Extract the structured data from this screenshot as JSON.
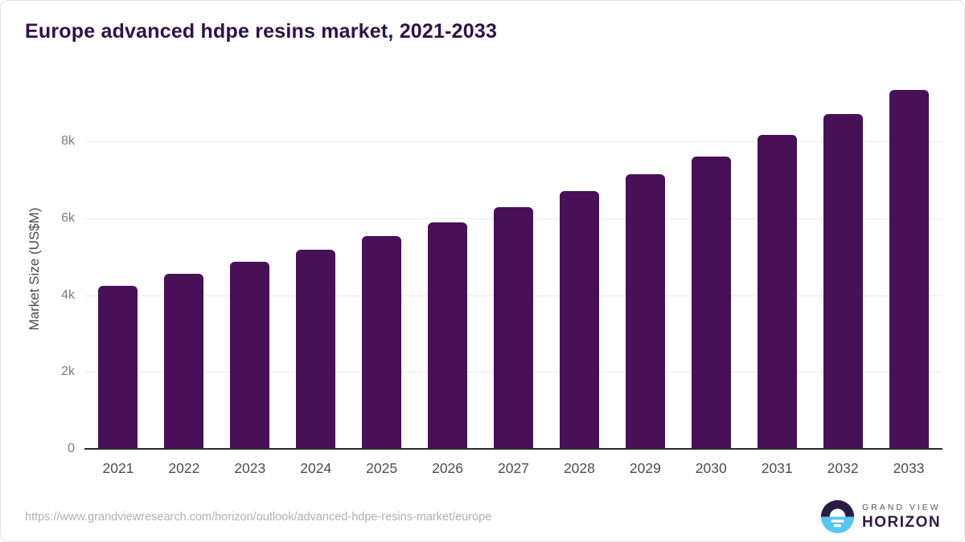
{
  "chart_data": {
    "type": "bar",
    "title": "Europe advanced hdpe resins market, 2021-2033",
    "categories": [
      "2021",
      "2022",
      "2023",
      "2024",
      "2025",
      "2026",
      "2027",
      "2028",
      "2029",
      "2030",
      "2031",
      "2032",
      "2033"
    ],
    "values": [
      4250,
      4550,
      4860,
      5180,
      5530,
      5890,
      6290,
      6700,
      7140,
      7610,
      8160,
      8720,
      9330
    ],
    "xlabel": "",
    "ylabel": "Market Size (US$M)",
    "ylim": [
      0,
      9600
    ],
    "yticks": {
      "values": [
        0,
        2000,
        4000,
        6000,
        8000
      ],
      "labels": [
        "0",
        "2k",
        "4k",
        "6k",
        "8k"
      ]
    },
    "grid": true,
    "legend": false,
    "bar_color": "#481056",
    "gridline_color": "#ebebeb",
    "axis_line_color": "#2b2b2b"
  },
  "footer": {
    "source_url": "https://www.grandviewresearch.com/horizon/outlook/advanced-hdpe-resins-market/europe",
    "logo_line1": "GRAND VIEW",
    "logo_line2": "HORIZON"
  },
  "colors": {
    "title": "#2e1148",
    "logo_top": "#2d1b47",
    "logo_bottom": "#59c5f3"
  }
}
